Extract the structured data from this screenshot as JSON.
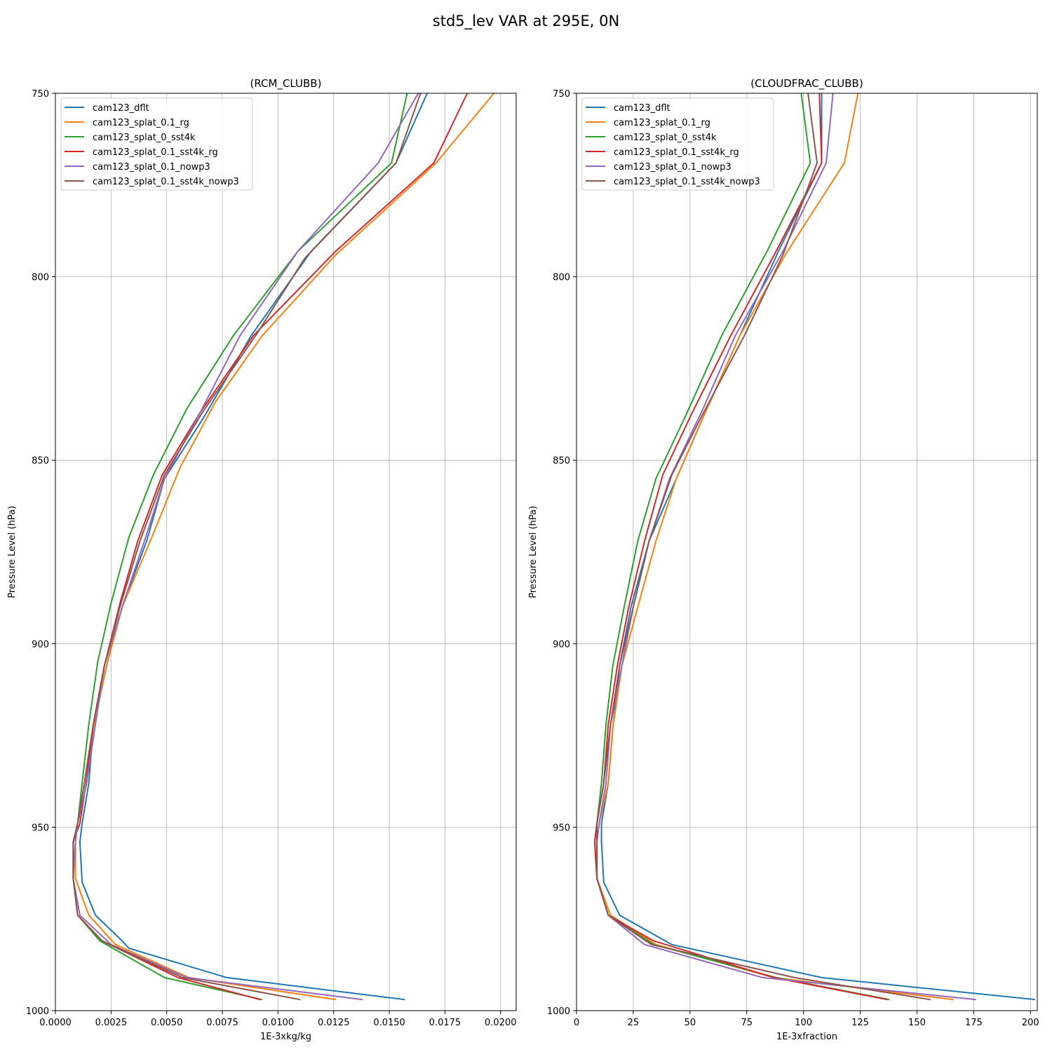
{
  "figure": {
    "suptitle": "std5_lev VAR at 295E, 0N"
  },
  "colors": {
    "cam123_dflt": "#1f77b4",
    "cam123_splat_0.1_rg": "#ff7f0e",
    "cam123_splat_0_sst4k": "#2ca02c",
    "cam123_splat_0.1_sst4k_rg": "#d62728",
    "cam123_splat_0.1_nowp3": "#9467bd",
    "cam123_splat_0.1_sst4k_nowp3": "#8c564b"
  },
  "chart_data": [
    {
      "type": "line",
      "title": "(RCM_CLUBB)",
      "xlabel": "1E-3xkg/kg",
      "ylabel": "Pressure Level (hPa)",
      "xlim": [
        0,
        0.0207
      ],
      "ylim": [
        1000,
        750
      ],
      "y_inverted": true,
      "grid": true,
      "legend": "upper-left",
      "xticks": [
        0,
        0.0025,
        0.005,
        0.0075,
        0.01,
        0.0125,
        0.015,
        0.0175,
        0.02
      ],
      "xtick_labels": [
        "0.0000",
        "0.0025",
        "0.0050",
        "0.0075",
        "0.0100",
        "0.0125",
        "0.0150",
        "0.0175",
        "0.0200"
      ],
      "yticks": [
        750,
        800,
        850,
        900,
        950,
        1000
      ],
      "ytick_labels": [
        "750",
        "800",
        "850",
        "900",
        "950",
        "1000"
      ],
      "series": [
        {
          "name": "cam123_dflt",
          "points": [
            [
              0.0167,
              750
            ],
            [
              0.0153,
              769
            ],
            [
              0.0115,
              793
            ],
            [
              0.0088,
              816
            ],
            [
              0.0067,
              838
            ],
            [
              0.0049,
              855
            ],
            [
              0.0041,
              872
            ],
            [
              0.003,
              890
            ],
            [
              0.0023,
              906
            ],
            [
              0.0017,
              923
            ],
            [
              0.0015,
              938
            ],
            [
              0.0012,
              949
            ],
            [
              0.0011,
              954
            ],
            [
              0.0012,
              965
            ],
            [
              0.0018,
              974
            ],
            [
              0.003,
              981
            ],
            [
              0.0033,
              983
            ],
            [
              0.0077,
              991
            ],
            [
              0.0157,
              997
            ]
          ]
        },
        {
          "name": "cam123_splat_0.1_rg",
          "points": [
            [
              0.0197,
              750
            ],
            [
              0.0171,
              769
            ],
            [
              0.0126,
              794
            ],
            [
              0.0093,
              816
            ],
            [
              0.0072,
              834
            ],
            [
              0.0056,
              852
            ],
            [
              0.0044,
              870
            ],
            [
              0.003,
              890
            ],
            [
              0.0023,
              906
            ],
            [
              0.0017,
              923
            ],
            [
              0.0014,
              938
            ],
            [
              0.001,
              949
            ],
            [
              0.0009,
              954
            ],
            [
              0.0009,
              964
            ],
            [
              0.0015,
              974
            ],
            [
              0.0027,
              982
            ],
            [
              0.006,
              991
            ],
            [
              0.0126,
              997
            ]
          ]
        },
        {
          "name": "cam123_splat_0_sst4k",
          "points": [
            [
              0.0158,
              750
            ],
            [
              0.0151,
              769
            ],
            [
              0.0109,
              793
            ],
            [
              0.008,
              816
            ],
            [
              0.0059,
              836
            ],
            [
              0.0044,
              854
            ],
            [
              0.0033,
              871
            ],
            [
              0.0025,
              889
            ],
            [
              0.0019,
              905
            ],
            [
              0.0015,
              922
            ],
            [
              0.0012,
              938
            ],
            [
              0.001,
              949
            ],
            [
              0.0008,
              954
            ],
            [
              0.0008,
              964
            ],
            [
              0.001,
              974
            ],
            [
              0.002,
              981
            ],
            [
              0.0049,
              991
            ],
            [
              0.0093,
              997
            ]
          ]
        },
        {
          "name": "cam123_splat_0.1_sst4k_rg",
          "points": [
            [
              0.0185,
              750
            ],
            [
              0.017,
              769
            ],
            [
              0.0126,
              793
            ],
            [
              0.0089,
              816
            ],
            [
              0.0065,
              837
            ],
            [
              0.0048,
              854
            ],
            [
              0.0037,
              872
            ],
            [
              0.0029,
              889
            ],
            [
              0.0022,
              906
            ],
            [
              0.0017,
              922
            ],
            [
              0.0014,
              937
            ],
            [
              0.0011,
              949
            ],
            [
              0.0008,
              954
            ],
            [
              0.0008,
              964
            ],
            [
              0.001,
              974
            ],
            [
              0.0021,
              981
            ],
            [
              0.0055,
              991
            ],
            [
              0.0092,
              997
            ]
          ]
        },
        {
          "name": "cam123_splat_0.1_nowp3",
          "points": [
            [
              0.0163,
              750
            ],
            [
              0.0145,
              769
            ],
            [
              0.0109,
              793
            ],
            [
              0.0083,
              816
            ],
            [
              0.0065,
              837
            ],
            [
              0.0049,
              855
            ],
            [
              0.004,
              872
            ],
            [
              0.003,
              890
            ],
            [
              0.0022,
              906
            ],
            [
              0.0018,
              922
            ],
            [
              0.0014,
              938
            ],
            [
              0.001,
              949
            ],
            [
              0.0009,
              954
            ],
            [
              0.0008,
              964
            ],
            [
              0.0011,
              974
            ],
            [
              0.0025,
              982
            ],
            [
              0.0059,
              991
            ],
            [
              0.0138,
              997
            ]
          ]
        },
        {
          "name": "cam123_splat_0.1_sst4k_nowp3",
          "points": [
            [
              0.0164,
              750
            ],
            [
              0.0153,
              769
            ],
            [
              0.0112,
              795
            ],
            [
              0.009,
              816
            ],
            [
              0.0066,
              837
            ],
            [
              0.0049,
              854
            ],
            [
              0.0038,
              872
            ],
            [
              0.0029,
              890
            ],
            [
              0.0022,
              906
            ],
            [
              0.0017,
              922
            ],
            [
              0.0013,
              938
            ],
            [
              0.001,
              949
            ],
            [
              0.0008,
              954
            ],
            [
              0.0008,
              964
            ],
            [
              0.001,
              974
            ],
            [
              0.0021,
              981
            ],
            [
              0.0057,
              991
            ],
            [
              0.011,
              997
            ]
          ]
        }
      ]
    },
    {
      "type": "line",
      "title": "(CLOUDFRAC_CLUBB)",
      "xlabel": "1E-3xfraction",
      "ylabel": "Pressure Level (hPa)",
      "xlim": [
        0,
        203
      ],
      "ylim": [
        1000,
        750
      ],
      "y_inverted": true,
      "grid": true,
      "legend": "upper-left",
      "xticks": [
        0,
        25,
        50,
        75,
        100,
        125,
        150,
        175,
        200
      ],
      "xtick_labels": [
        "0",
        "25",
        "50",
        "75",
        "100",
        "125",
        "150",
        "175",
        "200"
      ],
      "yticks": [
        750,
        800,
        850,
        900,
        950,
        1000
      ],
      "ytick_labels": [
        "750",
        "800",
        "850",
        "900",
        "950",
        "1000"
      ],
      "series": [
        {
          "name": "cam123_dflt",
          "points": [
            [
              108,
              750
            ],
            [
              108,
              769
            ],
            [
              89,
              793
            ],
            [
              72,
              816
            ],
            [
              56,
              838
            ],
            [
              44,
              855
            ],
            [
              32,
              872
            ],
            [
              24,
              890
            ],
            [
              19,
              906
            ],
            [
              16,
              923
            ],
            [
              14,
              938
            ],
            [
              11,
              949
            ],
            [
              11,
              954
            ],
            [
              12,
              965
            ],
            [
              19,
              974
            ],
            [
              42,
              982
            ],
            [
              108,
              991
            ],
            [
              202,
              997
            ]
          ]
        },
        {
          "name": "cam123_splat_0.1_rg",
          "points": [
            [
              124,
              750
            ],
            [
              118,
              769
            ],
            [
              92,
              794
            ],
            [
              72,
              816
            ],
            [
              56,
              838
            ],
            [
              44,
              855
            ],
            [
              35,
              872
            ],
            [
              27,
              890
            ],
            [
              20,
              906
            ],
            [
              16,
              923
            ],
            [
              14,
              938
            ],
            [
              10,
              949
            ],
            [
              9,
              954
            ],
            [
              9,
              964
            ],
            [
              15,
              974
            ],
            [
              35,
              982
            ],
            [
              87,
              991
            ],
            [
              166,
              997
            ]
          ]
        },
        {
          "name": "cam123_splat_0_sst4k",
          "points": [
            [
              99,
              750
            ],
            [
              103,
              769
            ],
            [
              84,
              793
            ],
            [
              64,
              816
            ],
            [
              48,
              838
            ],
            [
              35,
              855
            ],
            [
              27,
              872
            ],
            [
              21,
              890
            ],
            [
              16,
              906
            ],
            [
              13,
              922
            ],
            [
              11,
              938
            ],
            [
              9,
              949
            ],
            [
              8,
              954
            ],
            [
              9,
              964
            ],
            [
              14,
              974
            ],
            [
              34,
              982
            ],
            [
              88,
              991
            ],
            [
              138,
              997
            ]
          ]
        },
        {
          "name": "cam123_splat_0.1_sst4k_rg",
          "points": [
            [
              107,
              750
            ],
            [
              108,
              769
            ],
            [
              88,
              793
            ],
            [
              68,
              816
            ],
            [
              51,
              837
            ],
            [
              38,
              854
            ],
            [
              30,
              872
            ],
            [
              23,
              890
            ],
            [
              18,
              906
            ],
            [
              14,
              922
            ],
            [
              12,
              938
            ],
            [
              9,
              949
            ],
            [
              8,
              954
            ],
            [
              9,
              964
            ],
            [
              14,
              974
            ],
            [
              34,
              981
            ],
            [
              87,
              991
            ],
            [
              137,
              997
            ]
          ]
        },
        {
          "name": "cam123_splat_0.1_nowp3",
          "points": [
            [
              113,
              750
            ],
            [
              110,
              769
            ],
            [
              91,
              793
            ],
            [
              70,
              816
            ],
            [
              55,
              837
            ],
            [
              41,
              855
            ],
            [
              32,
              872
            ],
            [
              25,
              890
            ],
            [
              20,
              906
            ],
            [
              15,
              922
            ],
            [
              13,
              938
            ],
            [
              10,
              949
            ],
            [
              9,
              954
            ],
            [
              9,
              964
            ],
            [
              14,
              974
            ],
            [
              30,
              982
            ],
            [
              82,
              991
            ],
            [
              176,
              997
            ]
          ]
        },
        {
          "name": "cam123_splat_0.1_sst4k_nowp3",
          "points": [
            [
              102,
              750
            ],
            [
              106,
              769
            ],
            [
              91,
              794
            ],
            [
              74,
              816
            ],
            [
              56,
              837
            ],
            [
              42,
              854
            ],
            [
              32,
              872
            ],
            [
              25,
              890
            ],
            [
              19,
              906
            ],
            [
              15,
              922
            ],
            [
              12,
              938
            ],
            [
              9,
              949
            ],
            [
              9,
              954
            ],
            [
              9,
              964
            ],
            [
              14,
              974
            ],
            [
              33,
              982
            ],
            [
              96,
              991
            ],
            [
              156,
              997
            ]
          ]
        }
      ]
    }
  ]
}
